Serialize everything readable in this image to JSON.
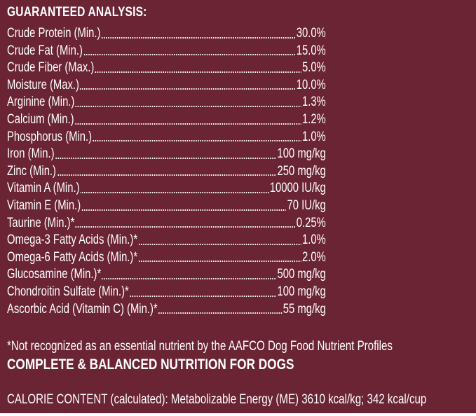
{
  "heading": "GUARANTEED ANALYSIS:",
  "rows": [
    {
      "label": "Crude Protein (Min.)",
      "value": "30.0%"
    },
    {
      "label": "Crude Fat (Min.)",
      "value": "15.0%"
    },
    {
      "label": "Crude Fiber (Max.)",
      "value": "5.0%"
    },
    {
      "label": "Moisture (Max.)",
      "value": "10.0%"
    },
    {
      "label": "Arginine (Min.)",
      "value": "1.3%"
    },
    {
      "label": "Calcium (Min.)",
      "value": "1.2%"
    },
    {
      "label": "Phosphorus (Min.)",
      "value": "1.0%"
    },
    {
      "label": "Iron (Min.)",
      "value": "100 mg/kg"
    },
    {
      "label": "Zinc (Min.)",
      "value": "250 mg/kg"
    },
    {
      "label": "Vitamin A (Min.)",
      "value": "10000 IU/kg"
    },
    {
      "label": "Vitamin E (Min.)",
      "value": "70 IU/kg"
    },
    {
      "label": "Taurine (Min.)*",
      "value": "0.25%"
    },
    {
      "label": "Omega-3 Fatty Acids (Min.)*",
      "value": "1.0%"
    },
    {
      "label": "Omega-6 Fatty Acids (Min.)*",
      "value": "2.0%"
    },
    {
      "label": "Glucosamine (Min.)*",
      "value": "500 mg/kg"
    },
    {
      "label": "Chondroitin Sulfate (Min.)*",
      "value": "100 mg/kg"
    },
    {
      "label": "Ascorbic Acid (Vitamin C) (Min.)*",
      "value": "55 mg/kg"
    }
  ],
  "footnote": "*Not recognized as an essential nutrient by the AAFCO Dog Food Nutrient Profiles",
  "complete": "COMPLETE & BALANCED NUTRITION FOR DOGS",
  "calorie": "CALORIE CONTENT (calculated): Metabolizable Energy (ME) 3610 kcal/kg; 342 kcal/cup",
  "colors": {
    "background": "#6a2434",
    "text": "#ffffff"
  }
}
